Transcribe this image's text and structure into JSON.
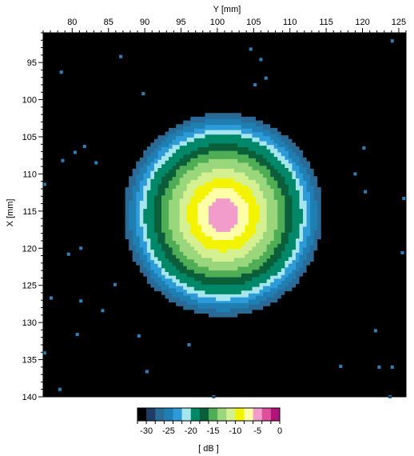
{
  "chart_data": {
    "type": "heatmap",
    "title": "",
    "xlabel": "Y [mm]",
    "ylabel": "X [mm]",
    "x_axis_position": "top",
    "xlim": [
      76,
      126
    ],
    "ylim": [
      91,
      140
    ],
    "y_direction": "increasing-downward",
    "x_ticks": [
      80,
      85,
      90,
      95,
      100,
      105,
      110,
      115,
      120,
      125
    ],
    "y_ticks": [
      95,
      100,
      105,
      110,
      115,
      120,
      125,
      130,
      135,
      140
    ],
    "grid": false,
    "background_color": "#000000",
    "spot_center": {
      "y_mm": 100.8,
      "x_mm": 115.5
    },
    "contour_levels": [
      {
        "level_db": -30,
        "radius_mm": 13.7,
        "color": "#2a6a96"
      },
      {
        "level_db": -28,
        "radius_mm": 12.9,
        "color": "#1f7fb3"
      },
      {
        "level_db": -26,
        "radius_mm": 12.1,
        "color": "#2c9bd8"
      },
      {
        "level_db": -24,
        "radius_mm": 11.4,
        "color": "#a5e6ee"
      },
      {
        "level_db": -22,
        "radius_mm": 10.8,
        "color": "#008868"
      },
      {
        "level_db": -20,
        "radius_mm": 9.6,
        "color": "#0b5e3a"
      },
      {
        "level_db": -18,
        "radius_mm": 8.6,
        "color": "#4fae55"
      },
      {
        "level_db": -16,
        "radius_mm": 7.5,
        "color": "#9ad67c"
      },
      {
        "level_db": -14,
        "radius_mm": 6.2,
        "color": "#d4f090"
      },
      {
        "level_db": -12,
        "radius_mm": 4.9,
        "color": "#f4f400"
      },
      {
        "level_db": -10,
        "radius_mm": 3.6,
        "color": "#ffffa8"
      },
      {
        "level_db": -8,
        "radius_mm": 2.2,
        "color": "#f29ccb"
      }
    ],
    "isolated_points": [
      {
        "y": 86.7,
        "x": 94.2
      },
      {
        "y": 78.5,
        "x": 96.3
      },
      {
        "y": 104.6,
        "x": 93.2
      },
      {
        "y": 106.0,
        "x": 94.6
      },
      {
        "y": 106.7,
        "x": 97.1
      },
      {
        "y": 105.2,
        "x": 98.0
      },
      {
        "y": 89.8,
        "x": 99.2
      },
      {
        "y": 124.1,
        "x": 92.1
      },
      {
        "y": 81.7,
        "x": 106.3
      },
      {
        "y": 120.2,
        "x": 106.5
      },
      {
        "y": 83.3,
        "x": 108.5
      },
      {
        "y": 78.7,
        "x": 108.2
      },
      {
        "y": 80.4,
        "x": 107.1
      },
      {
        "y": 119.0,
        "x": 110.0
      },
      {
        "y": 120.4,
        "x": 112.4
      },
      {
        "y": 76.2,
        "x": 111.4
      },
      {
        "y": 125.7,
        "x": 113.3
      },
      {
        "y": 81.2,
        "x": 120.0
      },
      {
        "y": 85.9,
        "x": 124.9
      },
      {
        "y": 79.5,
        "x": 120.8
      },
      {
        "y": 125.5,
        "x": 120.6
      },
      {
        "y": 77.1,
        "x": 126.7
      },
      {
        "y": 81.2,
        "x": 127.1
      },
      {
        "y": 84.2,
        "x": 128.4
      },
      {
        "y": 80.7,
        "x": 131.6
      },
      {
        "y": 89.2,
        "x": 131.8
      },
      {
        "y": 96.1,
        "x": 133.0
      },
      {
        "y": 121.8,
        "x": 131.1
      },
      {
        "y": 117.0,
        "x": 135.9
      },
      {
        "y": 122.3,
        "x": 136.0
      },
      {
        "y": 124.1,
        "x": 136.0
      },
      {
        "y": 90.3,
        "x": 136.6
      },
      {
        "y": 78.3,
        "x": 139.0
      },
      {
        "y": 76.2,
        "x": 134.1
      },
      {
        "y": 99.5,
        "x": 140.0
      },
      {
        "y": 123.8,
        "x": 140.0
      }
    ],
    "colorbar": {
      "label": "[ dB ]",
      "min": -32,
      "max": 0,
      "step": 2,
      "tick_values": [
        -30,
        -25,
        -20,
        -15,
        -10,
        -5,
        0
      ],
      "tick_labels": [
        "-30",
        "-25",
        "-20",
        "-15",
        "-10",
        "-5",
        "0"
      ],
      "colors": [
        "#000000",
        "#1e3c66",
        "#2a6a96",
        "#1f7fb3",
        "#2c9bd8",
        "#a5e6ee",
        "#008868",
        "#0b5e3a",
        "#4fae55",
        "#9ad67c",
        "#d4f090",
        "#f4f400",
        "#ffffa8",
        "#f29ccb",
        "#e0509a",
        "#b0137c"
      ]
    }
  }
}
